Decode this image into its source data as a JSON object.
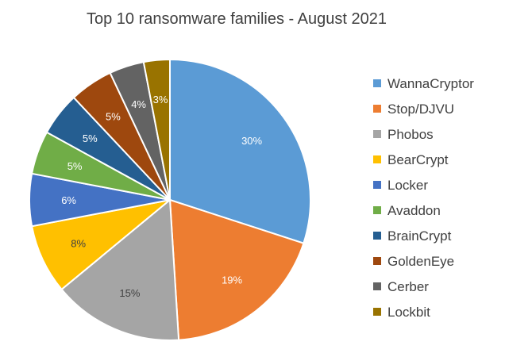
{
  "chart_data": {
    "type": "pie",
    "title": "Top 10 ransomware families - August 2021",
    "legend_position": "right",
    "label_format": "percent",
    "slices": [
      {
        "label": "WannaCryptor",
        "value": 30,
        "display": "30%",
        "color": "#5B9BD5"
      },
      {
        "label": "Stop/DJVU",
        "value": 19,
        "display": "19%",
        "color": "#ED7D31"
      },
      {
        "label": "Phobos",
        "value": 15,
        "display": "15%",
        "color": "#A5A5A5"
      },
      {
        "label": "BearCrypt",
        "value": 8,
        "display": "8%",
        "color": "#FFC000"
      },
      {
        "label": "Locker",
        "value": 6,
        "display": "6%",
        "color": "#4472C4"
      },
      {
        "label": "Avaddon",
        "value": 5,
        "display": "5%",
        "color": "#70AD47"
      },
      {
        "label": "BrainCrypt",
        "value": 5,
        "display": "5%",
        "color": "#255E91"
      },
      {
        "label": "GoldenEye",
        "value": 5,
        "display": "5%",
        "color": "#9E480E"
      },
      {
        "label": "Cerber",
        "value": 4,
        "display": "4%",
        "color": "#636363"
      },
      {
        "label": "Lockbit",
        "value": 3,
        "display": "3%",
        "color": "#997300"
      }
    ]
  }
}
